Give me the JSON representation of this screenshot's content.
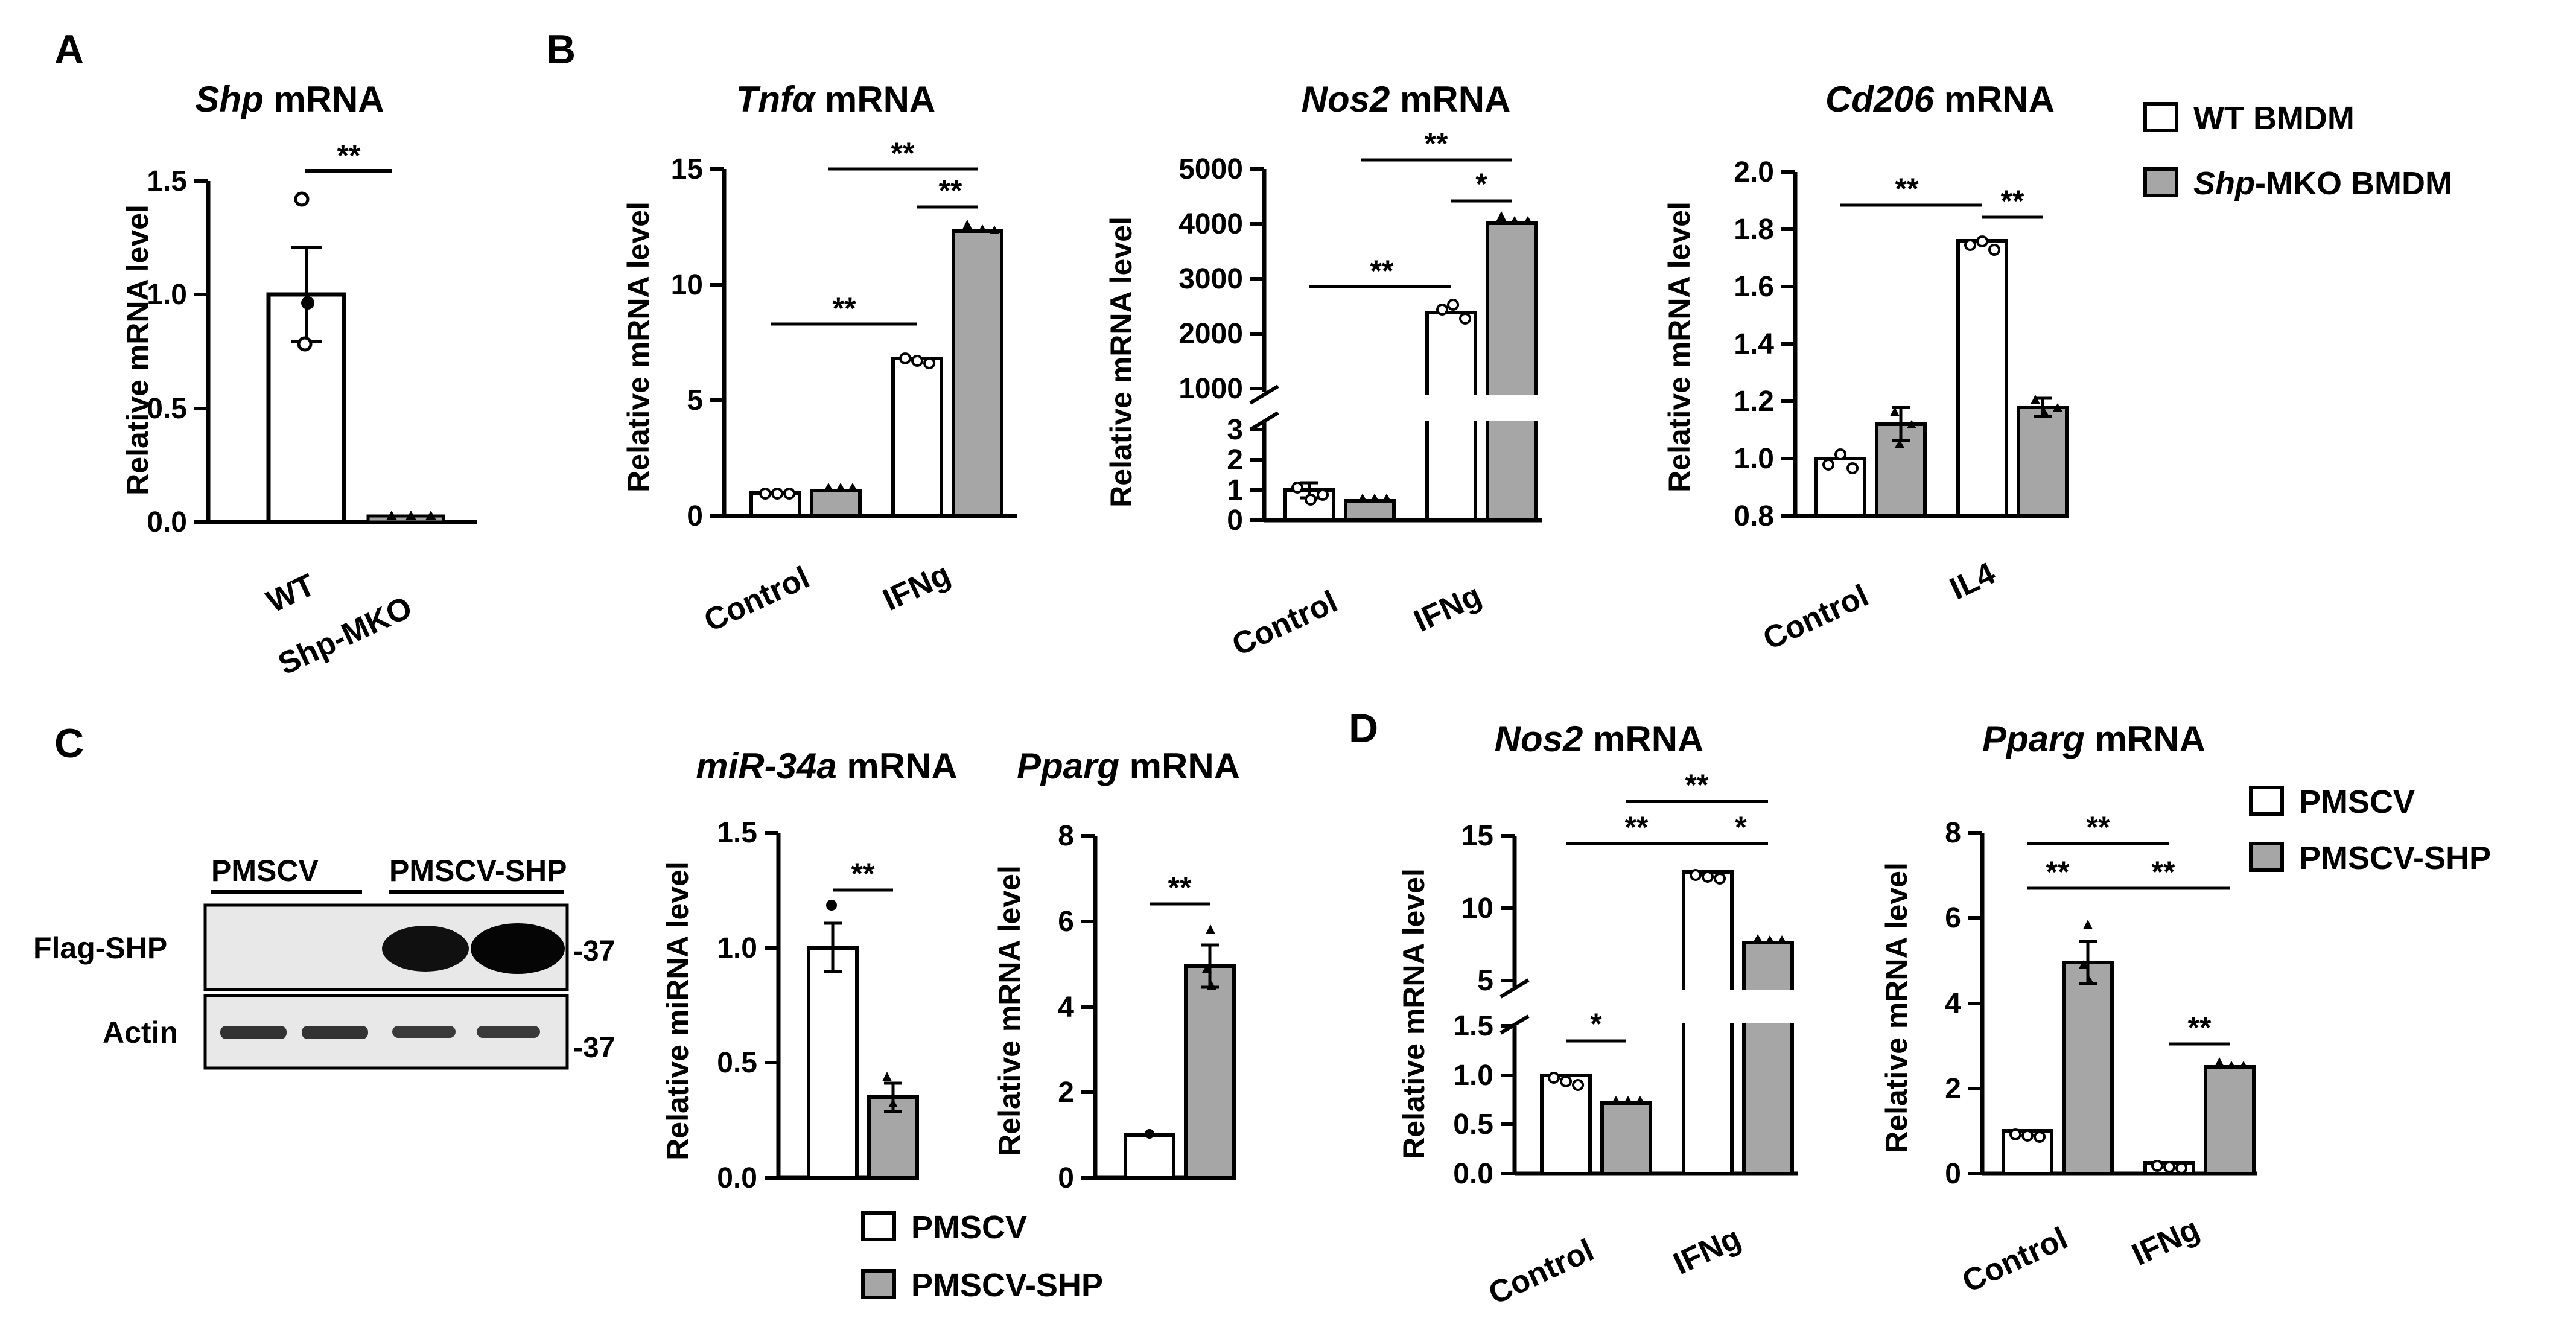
{
  "panel_labels": {
    "A": "A",
    "B": "B",
    "C": "C",
    "D": "D"
  },
  "legend_B": {
    "wt": "WT BMDM",
    "mko_italic": "Shp",
    "mko_rest": "-MKO BMDM"
  },
  "legend_C": {
    "ctrl": "PMSCV",
    "shp": "PMSCV-SHP"
  },
  "legend_D": {
    "ctrl": "PMSCV",
    "shp": "PMSCV-SHP"
  },
  "blot": {
    "lane_groups": [
      "PMSCV",
      "PMSCV-SHP"
    ],
    "rows": [
      "Flag-SHP",
      "Actin"
    ],
    "marker": "37"
  },
  "colors": {
    "white_bar": "#ffffff",
    "gray_bar": "#a6a6a6",
    "axis": "#000000"
  },
  "chart_data": [
    {
      "id": "A",
      "type": "bar",
      "title_italic": "Shp",
      "title_rest": " mRNA",
      "ylabel": "Relative mRNA level",
      "ylim": [
        0,
        1.5
      ],
      "yticks": [
        "0.0",
        "0.5",
        "1.0",
        "1.5"
      ],
      "categories": [
        "WT",
        "Shp-MKO"
      ],
      "values": [
        1.0,
        0.03
      ],
      "errors": [
        0.21,
        0.01
      ],
      "points": [
        [
          1.42,
          0.96,
          0.78
        ],
        [
          0.03,
          0.02,
          0.03
        ]
      ],
      "significance": [
        {
          "text": "**"
        }
      ]
    },
    {
      "id": "B1",
      "type": "bar",
      "title_italic": "Tnfα",
      "title_rest": " mRNA",
      "ylabel": "Relative mRNA level",
      "ylim": [
        0,
        15
      ],
      "yticks": [
        "0",
        "5",
        "10",
        "15"
      ],
      "categories": [
        "Control",
        "IFNg"
      ],
      "series": [
        {
          "values": [
            1.0,
            6.8
          ],
          "errors": [
            0.05,
            0.2
          ]
        },
        {
          "values": [
            1.1,
            12.3
          ],
          "errors": [
            0.05,
            0.25
          ]
        }
      ],
      "significance": [
        {
          "text": "**"
        },
        {
          "text": "**"
        },
        {
          "text": "**"
        }
      ]
    },
    {
      "id": "B2",
      "type": "bar",
      "title_italic": "Nos2",
      "title_rest": " mRNA",
      "ylabel": "Relative mRNA level",
      "axis_break": true,
      "yticks_low": [
        "0",
        "1",
        "2",
        "3"
      ],
      "yticks_high": [
        "1000",
        "2000",
        "3000",
        "4000",
        "5000"
      ],
      "categories": [
        "Control",
        "IFNg"
      ],
      "series": [
        {
          "values": [
            0.95,
            2350
          ],
          "errors": [
            0.25,
            150
          ]
        },
        {
          "values": [
            0.6,
            4100
          ],
          "errors": [
            0.05,
            60
          ]
        }
      ],
      "significance": [
        {
          "text": "**"
        },
        {
          "text": "**"
        },
        {
          "text": "*"
        }
      ]
    },
    {
      "id": "B3",
      "type": "bar",
      "title_italic": "Cd206",
      "title_rest": " mRNA",
      "ylabel": "Relative mRNA level",
      "ylim": [
        0.8,
        2.0
      ],
      "yticks": [
        "0.8",
        "1.0",
        "1.2",
        "1.4",
        "1.6",
        "1.8",
        "2.0"
      ],
      "categories": [
        "Control",
        "IL4"
      ],
      "series": [
        {
          "values": [
            1.0,
            1.76
          ],
          "errors": [
            0.03,
            0.02
          ]
        },
        {
          "values": [
            1.12,
            1.17
          ],
          "errors": [
            0.06,
            0.03
          ]
        }
      ],
      "significance": [
        {
          "text": "**"
        },
        {
          "text": "**"
        }
      ]
    },
    {
      "id": "C1",
      "type": "bar",
      "title_italic": "miR-34a",
      "title_rest": " mRNA",
      "ylabel": "Relative miRNA level",
      "ylim": [
        0,
        1.5
      ],
      "yticks": [
        "0.0",
        "0.5",
        "1.0",
        "1.5"
      ],
      "categories": [
        ""
      ],
      "series": [
        {
          "values": [
            1.0
          ],
          "errors": [
            0.1
          ]
        },
        {
          "values": [
            0.35
          ],
          "errors": [
            0.06
          ]
        }
      ],
      "significance": [
        {
          "text": "**"
        }
      ]
    },
    {
      "id": "C2",
      "type": "bar",
      "title_italic": "Pparg",
      "title_rest": " mRNA",
      "ylabel": "Relative mRNA level",
      "ylim": [
        0,
        8
      ],
      "yticks": [
        "0",
        "2",
        "4",
        "6",
        "8"
      ],
      "categories": [
        ""
      ],
      "series": [
        {
          "values": [
            1.0
          ],
          "errors": [
            0.04
          ]
        },
        {
          "values": [
            4.95
          ],
          "errors": [
            0.5
          ]
        }
      ],
      "significance": [
        {
          "text": "**"
        }
      ]
    },
    {
      "id": "D1",
      "type": "bar",
      "title_italic": "Nos2",
      "title_rest": " mRNA",
      "ylabel": "Relative mRNA level",
      "axis_break": true,
      "yticks_low": [
        "0.0",
        "0.5",
        "1.0",
        "1.5"
      ],
      "yticks_high": [
        "5",
        "10",
        "15"
      ],
      "categories": [
        "Control",
        "IFNg"
      ],
      "series": [
        {
          "values": [
            1.0,
            12.5
          ],
          "errors": [
            0.03,
            0.2
          ]
        },
        {
          "values": [
            0.72,
            7.6
          ],
          "errors": [
            0.02,
            0.2
          ]
        }
      ],
      "significance": [
        {
          "text": "*"
        },
        {
          "text": "**"
        },
        {
          "text": "**"
        },
        {
          "text": "*"
        }
      ]
    },
    {
      "id": "D2",
      "type": "bar",
      "title_italic": "Pparg",
      "title_rest": " mRNA",
      "ylabel": "Relative mRNA level",
      "ylim": [
        0,
        8
      ],
      "yticks": [
        "0",
        "2",
        "4",
        "6",
        "8"
      ],
      "categories": [
        "Control",
        "IFNg"
      ],
      "series": [
        {
          "values": [
            1.0,
            0.25
          ],
          "errors": [
            0.04,
            0.05
          ]
        },
        {
          "values": [
            4.95,
            2.5
          ],
          "errors": [
            0.5,
            0.15
          ]
        }
      ],
      "significance": [
        {
          "text": "**"
        },
        {
          "text": "**"
        },
        {
          "text": "**"
        },
        {
          "text": "**"
        }
      ]
    }
  ]
}
